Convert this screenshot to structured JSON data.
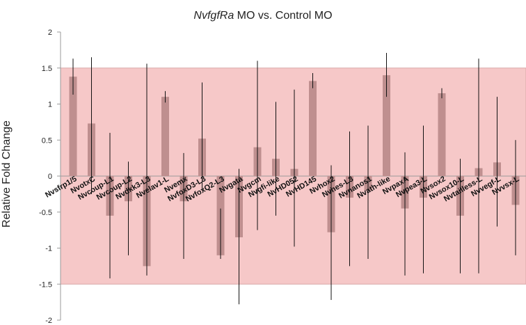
{
  "chart_data": {
    "type": "bar",
    "title_italic": "NvfgfRa",
    "title_rest": " MO vs. Control MO",
    "ylabel": "Relative Fold Change",
    "xlabel": "",
    "ylim": [
      -2,
      2
    ],
    "yticks": [
      2,
      1.5,
      1,
      0.5,
      0,
      -0.5,
      -1,
      -1.5,
      -2
    ],
    "shaded_band": [
      -1.5,
      1.5
    ],
    "colors": {
      "bar": "#bf8f8f",
      "band": "#f6c8c8",
      "band_edge": "#d9a5a5",
      "error": "#111111",
      "axis": "#9a9a9a"
    },
    "grid": false,
    "categories": [
      "Nvsfrp1/5",
      "NvotxC",
      "Nvcoup-L1",
      "Nvcoup-L2",
      "Nvdkk3-L3",
      "Nvelav1-L",
      "Nvemx",
      "NvfoxD3-L3",
      "NvfoxQ2-L3",
      "Nvgata",
      "Nvgcm",
      "Nvgfi-like",
      "NvHD052",
      "NvHD145",
      "Nvhox2",
      "Nvhes-L3",
      "Nvnanos1",
      "Nvath-like",
      "NvpaxA",
      "Nvpea3-L",
      "Nvsox2",
      "Nvsox10-L",
      "Nvtailless-L",
      "Nvvegf-L",
      "Nvvsx-L"
    ],
    "values": [
      1.38,
      0.73,
      -0.55,
      -0.35,
      -1.25,
      1.1,
      -0.35,
      0.52,
      -1.1,
      -0.85,
      0.4,
      0.24,
      0.1,
      1.32,
      -0.78,
      -0.3,
      -0.2,
      1.4,
      -0.45,
      -0.3,
      1.15,
      -0.55,
      0.11,
      0.19,
      -0.4
    ],
    "error_low": [
      1.13,
      -0.25,
      -1.42,
      -1.1,
      -1.38,
      1.02,
      -1.15,
      -0.2,
      -1.15,
      -1.78,
      -0.75,
      -0.55,
      -0.98,
      1.22,
      -1.72,
      -1.25,
      -1.15,
      1.1,
      -1.38,
      -1.35,
      1.08,
      -1.35,
      -1.35,
      -0.7,
      -1.1
    ],
    "error_high": [
      1.63,
      1.65,
      0.6,
      0.2,
      1.56,
      1.18,
      0.32,
      1.3,
      -0.45,
      0.1,
      1.6,
      1.03,
      1.2,
      1.43,
      0.15,
      0.62,
      0.7,
      1.71,
      0.33,
      0.7,
      1.22,
      0.24,
      1.63,
      1.1,
      0.5
    ]
  }
}
